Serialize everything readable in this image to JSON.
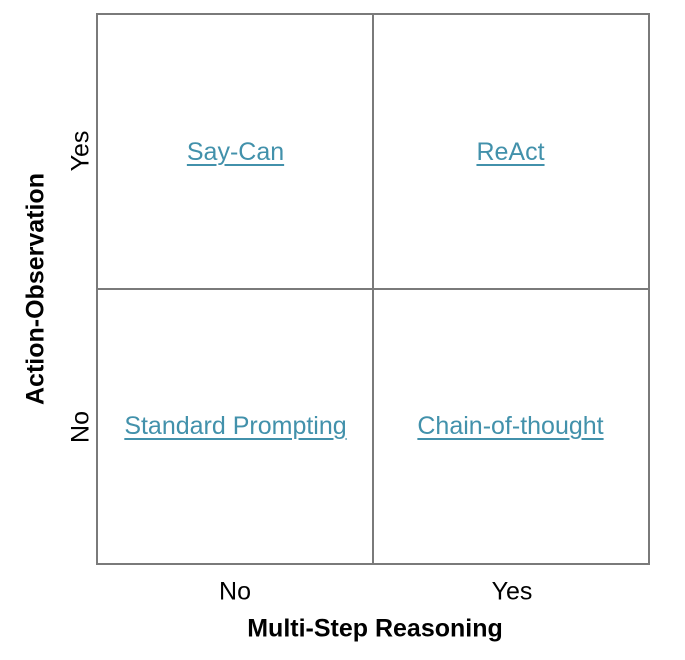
{
  "figure": {
    "type": "quadrant-matrix",
    "x_axis": {
      "title": "Multi-Step Reasoning",
      "tick_left": "No",
      "tick_right": "Yes"
    },
    "y_axis": {
      "title": "Action-Observation",
      "tick_top": "Yes",
      "tick_bottom": "No"
    },
    "quadrants": {
      "top_left": "Say-Can",
      "top_right": "ReAct",
      "bottom_left": "Standard Prompting",
      "bottom_right": "Chain-of-thought"
    },
    "colors": {
      "link": "#4291ab",
      "grid": "#7a7a7a",
      "text": "#000000",
      "background": "#ffffff"
    }
  }
}
